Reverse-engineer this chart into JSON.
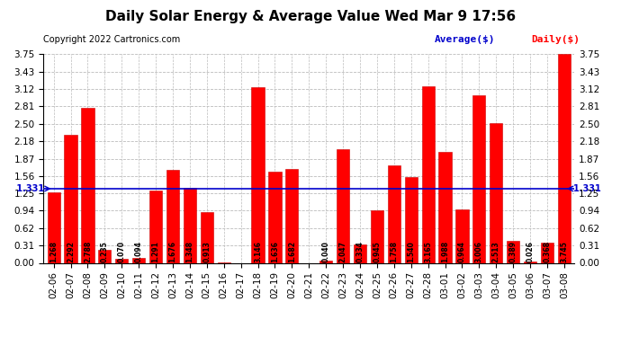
{
  "title": "Daily Solar Energy & Average Value Wed Mar 9 17:56",
  "copyright": "Copyright 2022 Cartronics.com",
  "legend_average": "Average($)",
  "legend_daily": "Daily($)",
  "average_value": 1.331,
  "categories": [
    "02-06",
    "02-07",
    "02-08",
    "02-09",
    "02-10",
    "02-11",
    "02-12",
    "02-13",
    "02-14",
    "02-15",
    "02-16",
    "02-17",
    "02-18",
    "02-19",
    "02-20",
    "02-21",
    "02-22",
    "02-23",
    "02-24",
    "02-25",
    "02-26",
    "02-27",
    "02-28",
    "03-01",
    "03-02",
    "03-03",
    "03-04",
    "03-05",
    "03-06",
    "03-07",
    "03-08"
  ],
  "values": [
    1.268,
    2.292,
    2.788,
    0.235,
    0.07,
    0.094,
    1.291,
    1.676,
    1.348,
    0.913,
    0.001,
    0.0,
    3.146,
    1.636,
    1.682,
    0.0,
    0.04,
    2.047,
    0.334,
    0.945,
    1.758,
    1.54,
    3.165,
    1.988,
    0.964,
    3.006,
    2.513,
    0.389,
    0.026,
    0.368,
    3.745
  ],
  "bar_color": "#ff0000",
  "bar_edge_color": "#cc0000",
  "average_line_color": "#0000cc",
  "background_color": "#ffffff",
  "grid_color": "#bbbbbb",
  "title_color": "#000000",
  "copyright_color": "#000000",
  "bar_text_color": "#000000",
  "ylim": [
    0.0,
    3.75
  ],
  "yticks": [
    0.0,
    0.31,
    0.62,
    0.94,
    1.25,
    1.56,
    1.87,
    2.18,
    2.5,
    2.81,
    3.12,
    3.43,
    3.75
  ],
  "title_fontsize": 11,
  "copyright_fontsize": 7,
  "legend_fontsize": 8,
  "bar_text_fontsize": 5.5,
  "tick_fontsize": 7.5,
  "average_fontsize": 7
}
